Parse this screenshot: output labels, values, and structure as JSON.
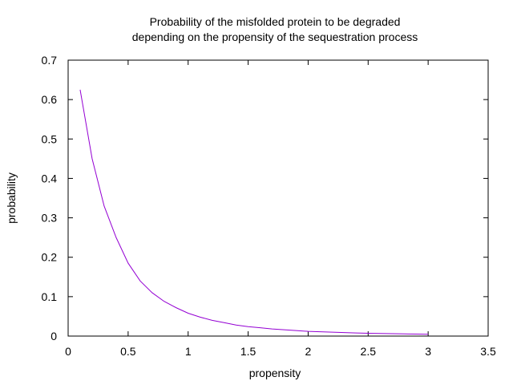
{
  "chart_data": {
    "type": "line",
    "title": [
      "Probability of the misfolded protein to be degraded",
      "depending on the propensity of the sequestration process"
    ],
    "xlabel": "propensity",
    "ylabel": "probability",
    "xlim": [
      0,
      3.5
    ],
    "ylim": [
      0,
      0.7
    ],
    "xticks": [
      0,
      0.5,
      1,
      1.5,
      2,
      2.5,
      3,
      3.5
    ],
    "xtick_labels": [
      "0",
      "0.5",
      "1",
      "1.5",
      "2",
      "2.5",
      "3",
      "3.5"
    ],
    "yticks": [
      0,
      0.1,
      0.2,
      0.3,
      0.4,
      0.5,
      0.6,
      0.7
    ],
    "ytick_labels": [
      "0",
      "0.1",
      "0.2",
      "0.3",
      "0.4",
      "0.5",
      "0.6",
      "0.7"
    ],
    "grid": false,
    "series": [
      {
        "color": "#9400d3",
        "x": [
          0.1,
          0.2,
          0.3,
          0.4,
          0.5,
          0.6,
          0.7,
          0.8,
          0.9,
          1.0,
          1.1,
          1.2,
          1.3,
          1.4,
          1.5,
          1.6,
          1.7,
          1.8,
          1.9,
          2.0,
          2.1,
          2.2,
          2.3,
          2.4,
          2.5,
          2.6,
          2.7,
          2.8,
          2.9,
          3.0
        ],
        "y": [
          0.625,
          0.45,
          0.33,
          0.25,
          0.185,
          0.14,
          0.11,
          0.088,
          0.072,
          0.058,
          0.048,
          0.04,
          0.034,
          0.028,
          0.024,
          0.021,
          0.018,
          0.016,
          0.014,
          0.012,
          0.011,
          0.01,
          0.009,
          0.008,
          0.007,
          0.0065,
          0.006,
          0.0055,
          0.005,
          0.0045
        ]
      }
    ]
  }
}
